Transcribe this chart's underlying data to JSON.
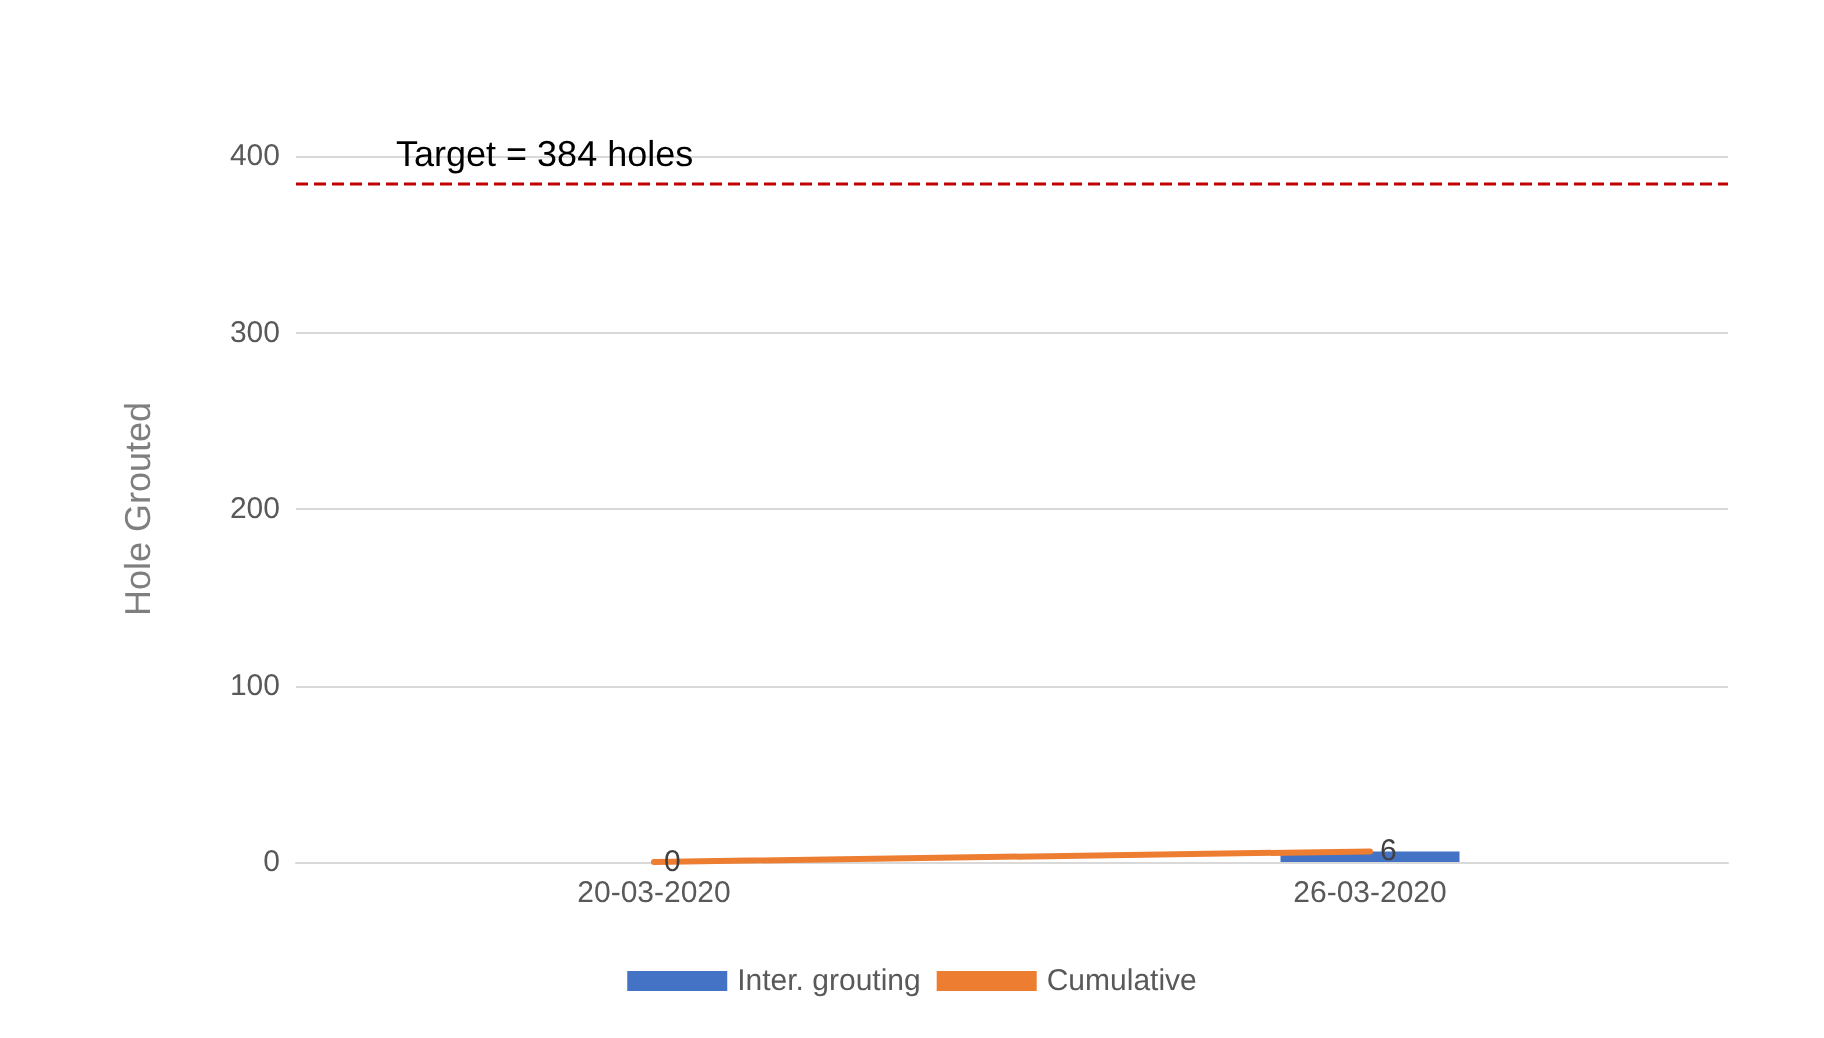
{
  "chart_data": {
    "type": "bar",
    "ylabel": "Hole Grouted",
    "categories": [
      "20-03-2020",
      "26-03-2020"
    ],
    "series": [
      {
        "name": "Inter. grouting",
        "color": "#4472c4",
        "values": [
          0,
          6
        ]
      },
      {
        "name": "Cumulative",
        "type": "line",
        "color": "#ed7d31",
        "values": [
          0,
          6
        ],
        "value_labels": [
          "0",
          "6"
        ]
      }
    ],
    "ylim": [
      0,
      400
    ],
    "yticks": [
      0,
      100,
      200,
      300,
      400
    ],
    "grid": "y",
    "legend": "bottom",
    "marker": "none",
    "line_style": "solid",
    "ref_lines": [
      {
        "axis": "y",
        "value": 384,
        "label": "Target = 384 holes",
        "color": "#c00000",
        "line_style": "dashed"
      }
    ]
  }
}
